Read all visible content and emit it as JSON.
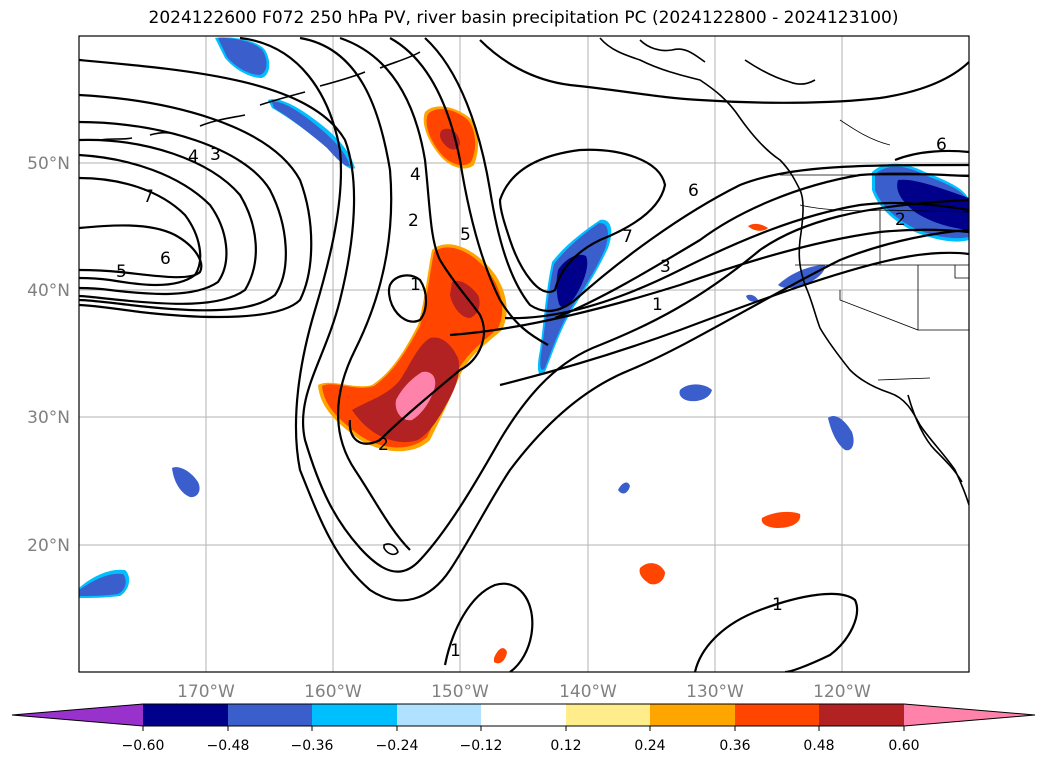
{
  "title": "2024122600 F072 250 hPa PV, river basin precipitation PC (2024122800 - 2024123100)",
  "lat_labels": [
    "50°N",
    "40°N",
    "30°N",
    "20°N"
  ],
  "lon_labels": [
    "170°W",
    "160°W",
    "150°W",
    "140°W",
    "130°W",
    "120°W"
  ],
  "colorbar": {
    "colors": [
      "#9932cc",
      "#00008b",
      "#3a5fcd",
      "#00bfff",
      "#b0e2ff",
      "#ffffff",
      "#ffec8b",
      "#ffa500",
      "#ff4500",
      "#b22222",
      "#ff82ab"
    ],
    "tick_labels": [
      "−0.60",
      "−0.48",
      "−0.36",
      "−0.24",
      "−0.12",
      "0.12",
      "0.24",
      "0.36",
      "0.48",
      "0.60"
    ]
  },
  "contour_labels": [
    "4",
    "3",
    "7",
    "6",
    "5",
    "4",
    "2",
    "5",
    "1",
    "7",
    "6",
    "3",
    "1",
    "6",
    "2",
    "2",
    "1",
    "1"
  ],
  "colors": {
    "negative_dark": "#00008b",
    "negative_mid": "#3a5fcd",
    "negative_light": "#00bfff",
    "positive_mid": "#ff4500",
    "positive_dark": "#b22222",
    "positive_high": "#ff82ab",
    "positive_light": "#ffa500"
  }
}
